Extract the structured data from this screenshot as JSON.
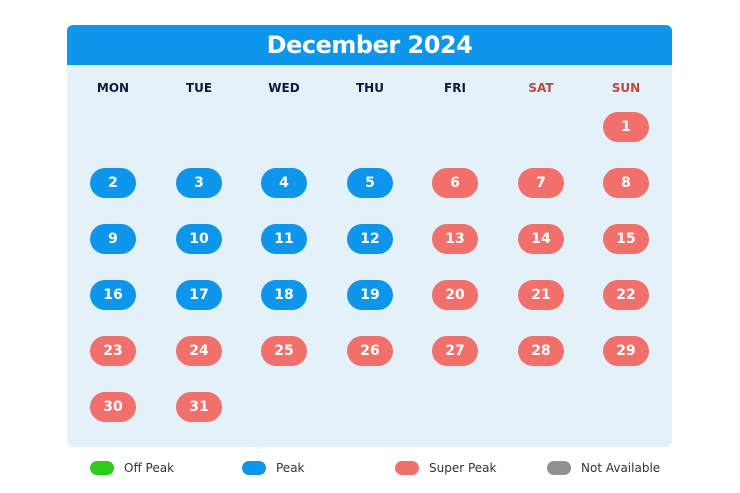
{
  "title": "December 2024",
  "weekdays": [
    "MON",
    "TUE",
    "WED",
    "THU",
    "FRI",
    "SAT",
    "SUN"
  ],
  "weekend_color": "#b84a3e",
  "status_colors": {
    "off_peak": "#2ecc1a",
    "peak": "#0e95ec",
    "super_peak": "#f2706b",
    "not_available": "#909090"
  },
  "days": [
    {
      "day": "1",
      "weekday": 6,
      "status": "super_peak"
    },
    {
      "day": "2",
      "weekday": 0,
      "status": "peak"
    },
    {
      "day": "3",
      "weekday": 1,
      "status": "peak"
    },
    {
      "day": "4",
      "weekday": 2,
      "status": "peak"
    },
    {
      "day": "5",
      "weekday": 3,
      "status": "peak"
    },
    {
      "day": "6",
      "weekday": 4,
      "status": "super_peak"
    },
    {
      "day": "7",
      "weekday": 5,
      "status": "super_peak"
    },
    {
      "day": "8",
      "weekday": 6,
      "status": "super_peak"
    },
    {
      "day": "9",
      "weekday": 0,
      "status": "peak"
    },
    {
      "day": "10",
      "weekday": 1,
      "status": "peak"
    },
    {
      "day": "11",
      "weekday": 2,
      "status": "peak"
    },
    {
      "day": "12",
      "weekday": 3,
      "status": "peak"
    },
    {
      "day": "13",
      "weekday": 4,
      "status": "super_peak"
    },
    {
      "day": "14",
      "weekday": 5,
      "status": "super_peak"
    },
    {
      "day": "15",
      "weekday": 6,
      "status": "super_peak"
    },
    {
      "day": "16",
      "weekday": 0,
      "status": "peak"
    },
    {
      "day": "17",
      "weekday": 1,
      "status": "peak"
    },
    {
      "day": "18",
      "weekday": 2,
      "status": "peak"
    },
    {
      "day": "19",
      "weekday": 3,
      "status": "peak"
    },
    {
      "day": "20",
      "weekday": 4,
      "status": "super_peak"
    },
    {
      "day": "21",
      "weekday": 5,
      "status": "super_peak"
    },
    {
      "day": "22",
      "weekday": 6,
      "status": "super_peak"
    },
    {
      "day": "23",
      "weekday": 0,
      "status": "super_peak"
    },
    {
      "day": "24",
      "weekday": 1,
      "status": "super_peak"
    },
    {
      "day": "25",
      "weekday": 2,
      "status": "super_peak"
    },
    {
      "day": "26",
      "weekday": 3,
      "status": "super_peak"
    },
    {
      "day": "27",
      "weekday": 4,
      "status": "super_peak"
    },
    {
      "day": "28",
      "weekday": 5,
      "status": "super_peak"
    },
    {
      "day": "29",
      "weekday": 6,
      "status": "super_peak"
    },
    {
      "day": "30",
      "weekday": 0,
      "status": "super_peak"
    },
    {
      "day": "31",
      "weekday": 1,
      "status": "super_peak"
    }
  ],
  "legend": [
    {
      "key": "off_peak",
      "label": "Off Peak"
    },
    {
      "key": "peak",
      "label": "Peak"
    },
    {
      "key": "super_peak",
      "label": "Super Peak"
    },
    {
      "key": "not_available",
      "label": "Not Available"
    }
  ]
}
